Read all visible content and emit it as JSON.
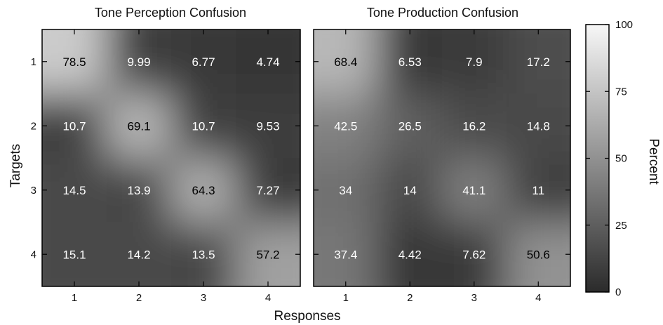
{
  "chart_data": [
    {
      "type": "heatmap",
      "title": "Tone Perception Confusion",
      "xlabel": "Responses",
      "ylabel": "Targets",
      "x": [
        "1",
        "2",
        "3",
        "4"
      ],
      "y": [
        "1",
        "2",
        "3",
        "4"
      ],
      "values": [
        [
          78.5,
          9.99,
          6.77,
          4.74
        ],
        [
          10.7,
          69.1,
          10.7,
          9.53
        ],
        [
          14.5,
          13.9,
          64.3,
          7.27
        ],
        [
          15.1,
          14.2,
          13.5,
          57.2
        ]
      ],
      "labels": [
        [
          "78.5",
          "9.99",
          "6.77",
          "4.74"
        ],
        [
          "10.7",
          "69.1",
          "10.7",
          "9.53"
        ],
        [
          "14.5",
          "13.9",
          "64.3",
          "7.27"
        ],
        [
          "15.1",
          "14.2",
          "13.5",
          "57.2"
        ]
      ]
    },
    {
      "type": "heatmap",
      "title": "Tone Production Confusion",
      "xlabel": "Responses",
      "ylabel": "Targets",
      "x": [
        "1",
        "2",
        "3",
        "4"
      ],
      "y": [
        "1",
        "2",
        "3",
        "4"
      ],
      "values": [
        [
          68.4,
          6.53,
          7.9,
          17.2
        ],
        [
          42.5,
          26.5,
          16.2,
          14.8
        ],
        [
          34,
          14,
          41.1,
          11
        ],
        [
          37.4,
          4.42,
          7.62,
          50.6
        ]
      ],
      "labels": [
        [
          "68.4",
          "6.53",
          "7.9",
          "17.2"
        ],
        [
          "42.5",
          "26.5",
          "16.2",
          "14.8"
        ],
        [
          "34",
          "14",
          "41.1",
          "11"
        ],
        [
          "37.4",
          "4.42",
          "7.62",
          "50.6"
        ]
      ]
    }
  ],
  "colorbar": {
    "label": "Percent",
    "range": [
      0,
      100
    ],
    "ticks": [
      "0",
      "25",
      "50",
      "75",
      "100"
    ],
    "colormap": "gray",
    "low_color": "#2b2b2b",
    "high_color": "#f7f7f7"
  }
}
